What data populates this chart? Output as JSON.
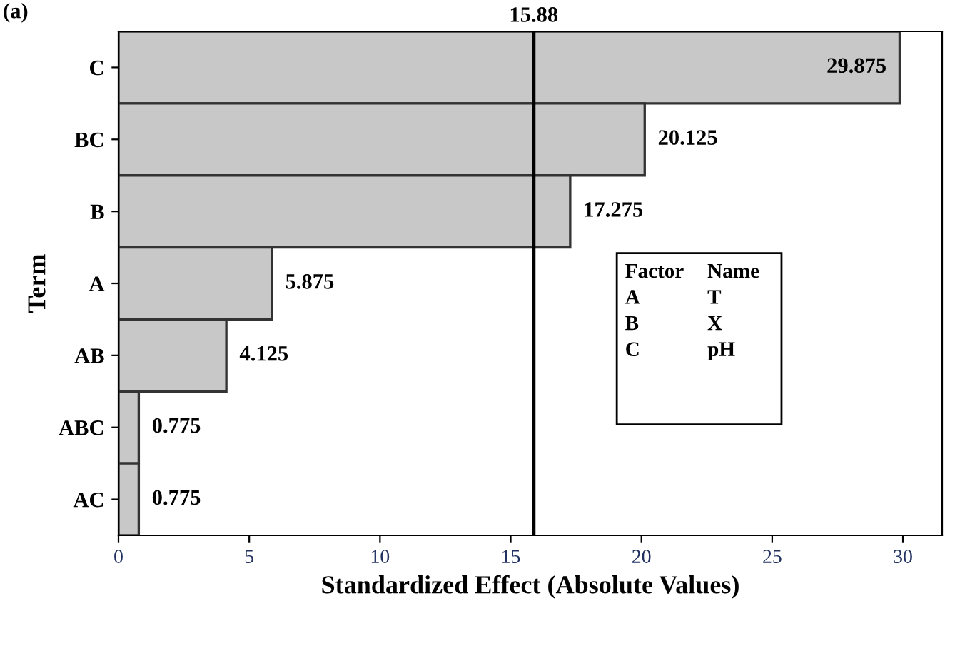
{
  "chart_data": {
    "type": "bar",
    "orientation": "horizontal",
    "xlabel": "Standardized Effect (Absolute Values)",
    "ylabel": "Term",
    "categories": [
      "C",
      "BC",
      "B",
      "A",
      "AB",
      "ABC",
      "AC"
    ],
    "values": [
      29.875,
      20.125,
      17.275,
      5.875,
      4.125,
      0.775,
      0.775
    ],
    "color": "#c8c8c8",
    "data_labels": true,
    "xlim": [
      0,
      31.5
    ],
    "xticks": [
      0,
      5,
      10,
      15,
      20,
      25,
      30
    ],
    "ref_lines": [
      {
        "axis": "x",
        "value": 15.88,
        "label": "15.88",
        "color": "#000000"
      }
    ],
    "annotations": [
      "(a)",
      "Factor\nA\nB\nC",
      "Name\nT\nX\npH"
    ],
    "grid": false,
    "legend": false
  }
}
